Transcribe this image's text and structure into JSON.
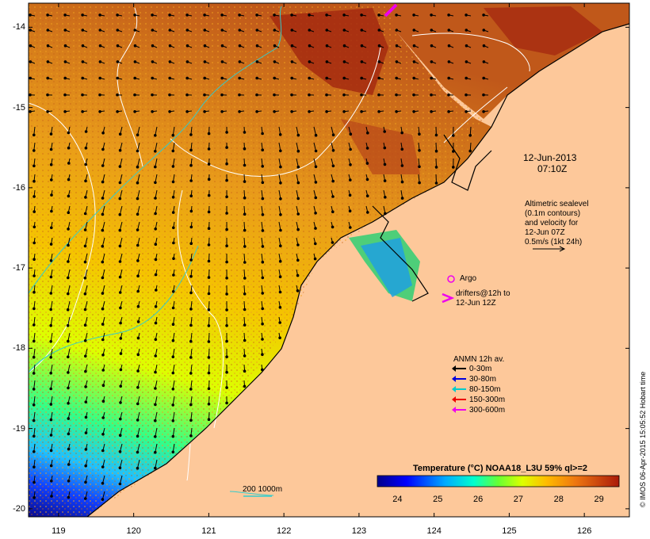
{
  "map": {
    "lat_ticks": [
      "-14",
      "-15",
      "-16",
      "-17",
      "-18",
      "-19",
      "-20"
    ],
    "lon_ticks": [
      "119",
      "120",
      "121",
      "122",
      "123",
      "124",
      "125",
      "126"
    ],
    "lat_range": [
      -20.1,
      -13.7
    ],
    "lon_range": [
      118.6,
      126.6
    ]
  },
  "annotations": {
    "date": "12-Jun-2013",
    "time": "07:10Z",
    "sealevel_lines": [
      "Altimetric sealevel",
      "(0.1m contours)",
      "and velocity for",
      "12-Jun 07Z",
      "0.5m/s (1kt 24h)"
    ],
    "argo_label": "Argo",
    "drifters_lines": [
      "drifters@12h to",
      "12-Jun 12Z"
    ],
    "depth_scale_label": "200  1000m",
    "credit": "© IMOS 06-Apr-2015 15:05:52 Hobart time"
  },
  "legend": {
    "title": "ANMN 12h av.",
    "items": [
      {
        "label": "0-30m",
        "color": "#000000"
      },
      {
        "label": "30-80m",
        "color": "#0000dd"
      },
      {
        "label": "80-150m",
        "color": "#00cccc"
      },
      {
        "label": "150-300m",
        "color": "#ee0000"
      },
      {
        "label": "300-600m",
        "color": "#ee00ee"
      }
    ]
  },
  "colorbar": {
    "title": "Temperature (°C) NOAA18_L3U 59% ql>=2",
    "ticks": [
      "24",
      "25",
      "26",
      "27",
      "28",
      "29"
    ],
    "range": [
      23.5,
      29.5
    ]
  },
  "colors": {
    "land": "#fdc89a",
    "warm": "#c0581a",
    "argo": "#ee00ee"
  }
}
